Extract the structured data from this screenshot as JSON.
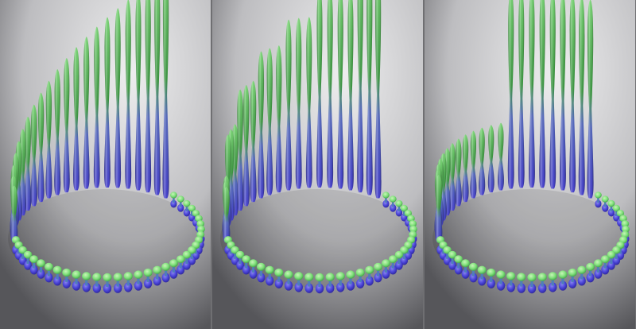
{
  "figure": {
    "colors": {
      "tip": "#7fe07a",
      "tip_dark": "#3f9e45",
      "base": "#4a44d8",
      "base_dark": "#2c2494",
      "backdrop_light": "#eeeeef",
      "backdrop_dark": "#56565a"
    },
    "panels": [
      {
        "id": "left",
        "rise_pattern": "continuous"
      },
      {
        "id": "middle",
        "rise_pattern": "stepped-pairs"
      },
      {
        "id": "right",
        "rise_pattern": "single-step"
      }
    ]
  }
}
